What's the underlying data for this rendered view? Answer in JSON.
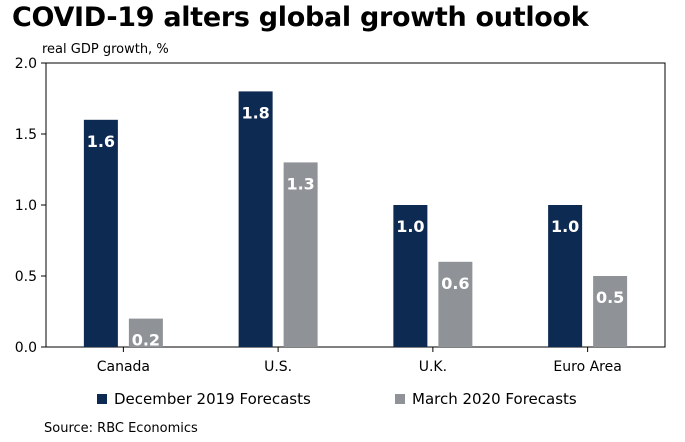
{
  "title": "COVID-19 alters global growth outlook",
  "subtitle": "real GDP growth, %",
  "source": "Source: RBC Economics",
  "colors": {
    "series1": "#0d2a52",
    "series2": "#8f9398",
    "axis": "#000000"
  },
  "chart_data": {
    "type": "bar",
    "title": "COVID-19 alters global growth outlook",
    "xlabel": "",
    "ylabel": "real GDP growth, %",
    "ylim": [
      0,
      2.0
    ],
    "yticks": [
      "0.0",
      "0.5",
      "1.0",
      "1.5",
      "2.0"
    ],
    "categories": [
      "Canada",
      "U.S.",
      "U.K.",
      "Euro Area"
    ],
    "series": [
      {
        "name": "December 2019 Forecasts",
        "values": [
          1.6,
          1.8,
          1.0,
          1.0
        ],
        "labels": [
          "1.6",
          "1.8",
          "1.0",
          "1.0"
        ]
      },
      {
        "name": "March 2020 Forecasts",
        "values": [
          0.2,
          1.3,
          0.6,
          0.5
        ],
        "labels": [
          "0.2",
          "1.3",
          "0.6",
          "0.5"
        ]
      }
    ],
    "grid": false,
    "legend": "bottom"
  }
}
